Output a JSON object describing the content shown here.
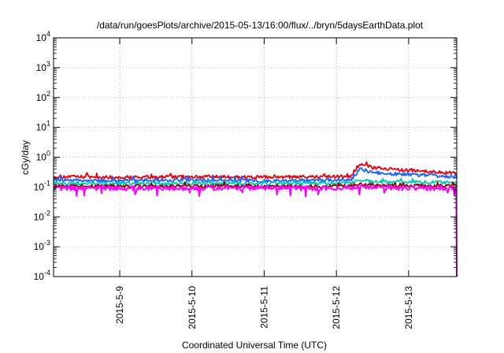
{
  "chart_data": {
    "type": "line",
    "title": "/data/run/goesPlots/archive/2015-05-13/16:00/flux/../bryn/5daysEarthData.plot",
    "xlabel": "Coordinated Universal Time (UTC)",
    "ylabel": "cGy/day",
    "yscale": "log",
    "ylim": [
      0.0001,
      10000
    ],
    "xlim": [
      "2015-05-08 02:00",
      "2015-05-13 16:00"
    ],
    "y_ticks": [
      {
        "value": 0.0001,
        "base": "10",
        "exp": "-4"
      },
      {
        "value": 0.001,
        "base": "10",
        "exp": "-3"
      },
      {
        "value": 0.01,
        "base": "10",
        "exp": "-2"
      },
      {
        "value": 0.1,
        "base": "10",
        "exp": "-1"
      },
      {
        "value": 1,
        "base": "10",
        "exp": "0"
      },
      {
        "value": 10,
        "base": "10",
        "exp": "1"
      },
      {
        "value": 100,
        "base": "10",
        "exp": "2"
      },
      {
        "value": 1000,
        "base": "10",
        "exp": "3"
      },
      {
        "value": 10000,
        "base": "10",
        "exp": "4"
      }
    ],
    "x_ticks": [
      "2015-5-9",
      "2015-5-10",
      "2015-5-11",
      "2015-5-12",
      "2015-5-13"
    ],
    "grid": true,
    "legend": "none",
    "series": [
      {
        "color": "#e8000b",
        "x": [
          "2015-05-08 02:00",
          "2015-05-09 00:00",
          "2015-05-10 00:00",
          "2015-05-11 00:00",
          "2015-05-12 00:00",
          "2015-05-12 05:00",
          "2015-05-12 08:00",
          "2015-05-12 12:00",
          "2015-05-13 00:00",
          "2015-05-13 12:00",
          "2015-05-13 16:00"
        ],
        "y": [
          0.22,
          0.21,
          0.22,
          0.21,
          0.22,
          0.23,
          0.6,
          0.45,
          0.35,
          0.3,
          0.28
        ]
      },
      {
        "color": "#1e63ff",
        "x": [
          "2015-05-08 02:00",
          "2015-05-09 00:00",
          "2015-05-10 00:00",
          "2015-05-11 00:00",
          "2015-05-12 00:00",
          "2015-05-12 05:00",
          "2015-05-12 08:00",
          "2015-05-12 12:00",
          "2015-05-13 00:00",
          "2015-05-13 12:00",
          "2015-05-13 16:00"
        ],
        "y": [
          0.17,
          0.16,
          0.17,
          0.16,
          0.17,
          0.18,
          0.4,
          0.3,
          0.26,
          0.23,
          0.21
        ]
      },
      {
        "color": "#00c9b0",
        "x": [
          "2015-05-08 02:00",
          "2015-05-09 00:00",
          "2015-05-10 00:00",
          "2015-05-11 00:00",
          "2015-05-12 00:00",
          "2015-05-12 05:00",
          "2015-05-12 08:00",
          "2015-05-12 12:00",
          "2015-05-13 00:00",
          "2015-05-13 12:00",
          "2015-05-13 16:00"
        ],
        "y": [
          0.13,
          0.13,
          0.13,
          0.13,
          0.13,
          0.14,
          0.17,
          0.15,
          0.15,
          0.14,
          0.14
        ]
      },
      {
        "color": "#8b0000",
        "x": [
          "2015-05-08 02:00",
          "2015-05-09 00:00",
          "2015-05-10 00:00",
          "2015-05-11 00:00",
          "2015-05-12 00:00",
          "2015-05-12 05:00",
          "2015-05-12 08:00",
          "2015-05-12 12:00",
          "2015-05-13 00:00",
          "2015-05-13 12:00",
          "2015-05-13 16:00"
        ],
        "y": [
          0.105,
          0.105,
          0.105,
          0.105,
          0.105,
          0.11,
          0.12,
          0.115,
          0.11,
          0.11,
          0.11
        ]
      },
      {
        "color": "#ff00ff",
        "x": [
          "2015-05-08 02:00",
          "2015-05-09 00:00",
          "2015-05-10 00:00",
          "2015-05-11 00:00",
          "2015-05-12 00:00",
          "2015-05-12 05:00",
          "2015-05-12 08:00",
          "2015-05-12 12:00",
          "2015-05-13 00:00",
          "2015-05-13 12:00",
          "2015-05-13 15:50",
          "2015-05-13 16:00"
        ],
        "y": [
          0.09,
          0.09,
          0.09,
          0.09,
          0.09,
          0.09,
          0.1,
          0.095,
          0.09,
          0.09,
          0.09,
          0.0001
        ]
      }
    ]
  }
}
